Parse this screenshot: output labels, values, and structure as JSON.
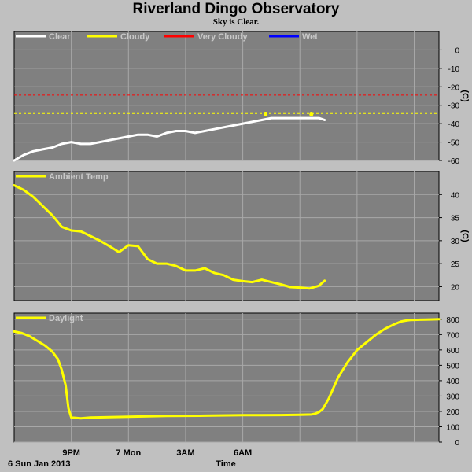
{
  "header": {
    "title": "Riverland Dingo Observatory",
    "subtitle": "Sky is Clear."
  },
  "footer": {
    "date_label": "6 Sun Jan 2013",
    "time_label": "Time"
  },
  "colors": {
    "panel_bg": "#808080",
    "grid": "#a8a8a8",
    "clear": "#ffffff",
    "cloudy": "#ffff00",
    "very_cloudy": "#ff0000",
    "wet": "#0000ff",
    "page_bg": "#c0c0c0"
  },
  "chart_data": [
    {
      "type": "line",
      "legend": [
        {
          "name": "Clear",
          "color": "#ffffff"
        },
        {
          "name": "Cloudy",
          "color": "#ffff00"
        },
        {
          "name": "Very Cloudy",
          "color": "#ff0000"
        },
        {
          "name": "Wet",
          "color": "#0000ff"
        }
      ],
      "ylabel": "(C)",
      "ylim": [
        -60,
        10
      ],
      "yticks": [
        0,
        -10,
        -20,
        -30,
        -40,
        -50,
        -60
      ],
      "thresholds": [
        {
          "name": "Cloudy",
          "value": -34.5,
          "color": "#ffff00"
        },
        {
          "name": "Very Cloudy",
          "value": -24.5,
          "color": "#ff0000"
        }
      ],
      "series": [
        {
          "name": "Clear",
          "color": "#ffffff",
          "x": [
            18.0,
            18.5,
            19.0,
            19.5,
            20.0,
            20.5,
            21.0,
            21.5,
            22.0,
            22.5,
            23.0,
            23.5,
            24.0,
            24.5,
            25.0,
            25.5,
            26.0,
            26.5,
            27.0,
            27.5,
            28.0,
            28.5,
            29.0,
            29.5,
            30.0,
            30.5,
            31.0,
            31.5,
            32.0,
            32.5,
            33.0,
            33.5,
            34.0,
            34.3
          ],
          "y": [
            -60,
            -57,
            -55,
            -54,
            -53,
            -51,
            -50,
            -51,
            -51,
            -50,
            -49,
            -48,
            -47,
            -46,
            -46,
            -47,
            -45,
            -44,
            -44,
            -45,
            -44,
            -43,
            -42,
            -41,
            -40,
            -39,
            -38,
            -37,
            -37,
            -37,
            -37,
            -37,
            -37,
            -38
          ]
        }
      ],
      "markers": [
        {
          "x": 31.2,
          "y": -35
        },
        {
          "x": 33.6,
          "y": -35
        }
      ]
    },
    {
      "type": "line",
      "legend": [
        {
          "name": "Ambient Temp",
          "color": "#ffff00"
        }
      ],
      "ylabel": "(C)",
      "ylim": [
        17,
        45
      ],
      "yticks": [
        40,
        35,
        30,
        25,
        20
      ],
      "series": [
        {
          "name": "Ambient Temp",
          "color": "#ffff00",
          "x": [
            18.0,
            18.5,
            19.0,
            19.5,
            20.0,
            20.5,
            21.0,
            21.5,
            22.0,
            22.5,
            23.0,
            23.5,
            24.0,
            24.5,
            25.0,
            25.5,
            26.0,
            26.5,
            27.0,
            27.5,
            28.0,
            28.5,
            29.0,
            29.5,
            30.0,
            30.5,
            31.0,
            31.5,
            32.0,
            32.5,
            33.0,
            33.5,
            34.0,
            34.3
          ],
          "y": [
            42,
            41,
            39.5,
            37.5,
            35.5,
            33,
            32.2,
            32,
            31,
            30,
            28.8,
            27.5,
            29,
            28.8,
            26,
            25,
            25,
            24.5,
            23.5,
            23.5,
            24,
            23,
            22.5,
            21.5,
            21.2,
            21,
            21.5,
            21,
            20.5,
            19.9,
            19.8,
            19.6,
            20.2,
            21.3
          ]
        }
      ]
    },
    {
      "type": "line",
      "legend": [
        {
          "name": "Daylight",
          "color": "#ffff00"
        }
      ],
      "xlabel": "Time",
      "ylim": [
        0,
        840
      ],
      "yticks": [
        800,
        700,
        600,
        500,
        400,
        300,
        200,
        100,
        0
      ],
      "x_ticks": [
        {
          "x": 21,
          "label": "9PM"
        },
        {
          "x": 24,
          "label": "7 Mon"
        },
        {
          "x": 27,
          "label": "3AM"
        },
        {
          "x": 30,
          "label": "6AM"
        }
      ],
      "series": [
        {
          "name": "Daylight",
          "color": "#ffff00",
          "x": [
            18.0,
            18.4,
            18.8,
            19.2,
            19.6,
            20.0,
            20.3,
            20.5,
            20.7,
            20.85,
            21.0,
            21.5,
            22.0,
            24.0,
            26.0,
            28.0,
            30.0,
            31.0,
            32.0,
            33.0,
            33.6,
            33.8,
            34.0,
            34.2,
            34.5,
            35.0,
            35.5,
            36.0,
            36.5,
            37.0,
            37.5,
            38.0,
            38.3,
            38.6,
            38.8,
            39.0,
            39.3,
            39.6,
            40.0,
            40.3
          ],
          "y": [
            720,
            710,
            690,
            660,
            630,
            590,
            540,
            470,
            370,
            220,
            160,
            155,
            160,
            165,
            170,
            172,
            175,
            175,
            176,
            178,
            180,
            185,
            195,
            215,
            280,
            420,
            520,
            600,
            650,
            700,
            740,
            770,
            785,
            792,
            795,
            796,
            797,
            798,
            799,
            800
          ]
        }
      ]
    }
  ]
}
